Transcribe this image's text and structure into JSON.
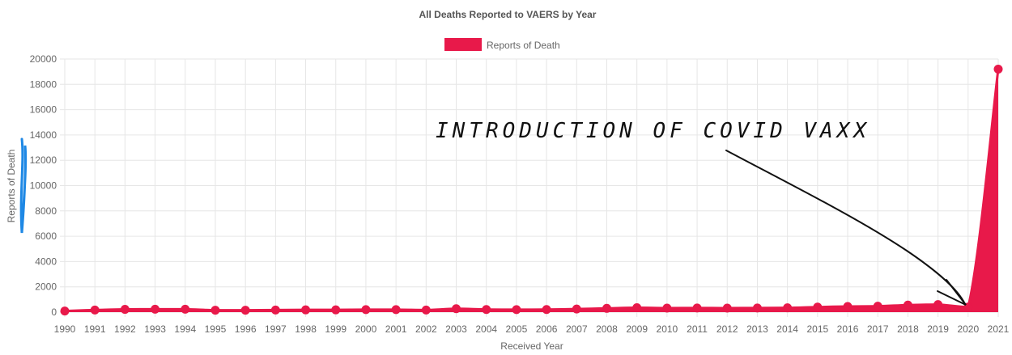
{
  "chart_data": {
    "type": "area",
    "title": "All Deaths Reported to VAERS by Year",
    "xlabel": "Received Year",
    "ylabel": "Reports of Death",
    "ylim": [
      0,
      20000
    ],
    "yticks": [
      0,
      2000,
      4000,
      6000,
      8000,
      10000,
      12000,
      14000,
      16000,
      18000,
      20000
    ],
    "grid": true,
    "legend_position": "top-center",
    "categories": [
      "1990",
      "1991",
      "1992",
      "1993",
      "1994",
      "1995",
      "1996",
      "1997",
      "1998",
      "1999",
      "2000",
      "2001",
      "2002",
      "2003",
      "2004",
      "2005",
      "2006",
      "2007",
      "2008",
      "2009",
      "2010",
      "2011",
      "2012",
      "2013",
      "2014",
      "2015",
      "2016",
      "2017",
      "2018",
      "2019",
      "2020",
      "2021"
    ],
    "series": [
      {
        "name": "Reports of Death",
        "values": [
          90,
          170,
          220,
          230,
          230,
          150,
          150,
          170,
          180,
          180,
          200,
          200,
          170,
          270,
          210,
          200,
          210,
          250,
          300,
          350,
          320,
          330,
          320,
          330,
          340,
          400,
          450,
          470,
          560,
          600,
          400,
          19200
        ]
      }
    ],
    "annotations": [
      {
        "text": "INTRODUCTION OF COVID VAXX",
        "points_to": "2020"
      }
    ]
  },
  "colors": {
    "series": "#e8194a",
    "grid": "#e6e6e6",
    "annotation": "#111111",
    "scribble": "#1e88e5"
  }
}
